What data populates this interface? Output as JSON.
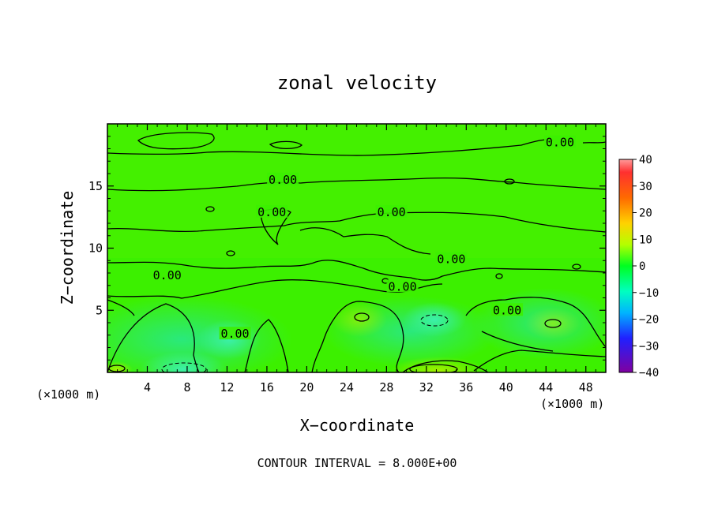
{
  "chart_data": {
    "type": "heatmap",
    "title": "zonal velocity",
    "xlabel": "X−coordinate",
    "ylabel": "Z−coordinate",
    "x_unit_label": "(×1000 m)",
    "x_unit_label_right": "(×1000 m)",
    "footer": "CONTOUR INTERVAL = 8.000E+00",
    "xlim": [
      0,
      50
    ],
    "ylim": [
      0,
      20
    ],
    "x_ticks": [
      "4",
      "8",
      "12",
      "16",
      "20",
      "24",
      "28",
      "32",
      "36",
      "40",
      "44",
      "48"
    ],
    "y_ticks": [
      "5",
      "10",
      "15"
    ],
    "colorbar": {
      "ticks": [
        "40",
        "30",
        "20",
        "10",
        "0",
        "−10",
        "−20",
        "−30",
        "−40"
      ],
      "range": [
        -40,
        40
      ],
      "colors": [
        "#7a00a8",
        "#2a00ff",
        "#00a0ff",
        "#00ffe0",
        "#00ff40",
        "#a0ff00",
        "#ffff00",
        "#ff9a00",
        "#ff0000",
        "#ff9090"
      ]
    },
    "contour_labels": [
      {
        "text": "0.00",
        "x": 45.4,
        "z": 18.5
      },
      {
        "text": "0.00",
        "x": 17.6,
        "z": 15.5
      },
      {
        "text": "0.00",
        "x": 16.5,
        "z": 12.9
      },
      {
        "text": "0.00",
        "x": 28.5,
        "z": 12.9
      },
      {
        "text": "0.00",
        "x": 34.5,
        "z": 9.1
      },
      {
        "text": "0.00",
        "x": 6.0,
        "z": 7.8
      },
      {
        "text": "0.00",
        "x": 29.6,
        "z": 6.9
      },
      {
        "text": "0.00",
        "x": 40.1,
        "z": 5.0
      },
      {
        "text": "0.00",
        "x": 12.8,
        "z": 3.1
      }
    ],
    "contour_interval": 8.0
  }
}
